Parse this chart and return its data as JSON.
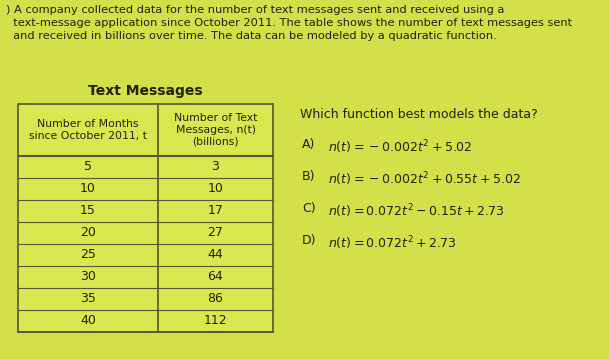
{
  "title": "Text Messages",
  "header_col1": "Number of Months\nsince October 2011, t",
  "header_col2": "Number of Text\nMessages, n(t)\n(billions)",
  "table_data": [
    [
      5,
      3
    ],
    [
      10,
      10
    ],
    [
      15,
      17
    ],
    [
      20,
      27
    ],
    [
      25,
      44
    ],
    [
      30,
      64
    ],
    [
      35,
      86
    ],
    [
      40,
      112
    ]
  ],
  "question": "Which function best models the data?",
  "options_prefix": [
    "A)",
    "B)",
    "C)",
    "D)"
  ],
  "options_math": [
    "$n(t) = -0.002t^2 + 5.02$",
    "$n(t) = -0.002t^2 + 0.55t + 5.02$",
    "$n(t) = 0.072t^2 - 0.15t + 2.73$",
    "$n(t) = 0.072t^2 + 2.73$"
  ],
  "description": ") A company collected data for the number of text messages sent and received using a\n  text-message application since October 2011. The table shows the number of text messages sent\n  and received in billions over time. The data can be modeled by a quadratic function.",
  "bg_color": "#d4e04a",
  "table_fill": "#d8e850",
  "border_color": "#555533",
  "text_color": "#222200"
}
